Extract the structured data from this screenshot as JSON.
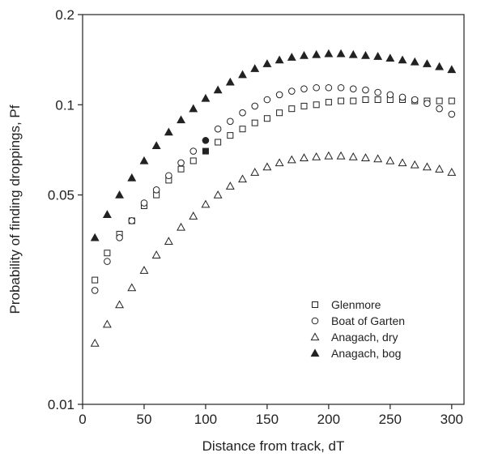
{
  "chart_data": {
    "type": "scatter",
    "title": "",
    "xlabel": "Distance from track, dT",
    "ylabel": "Probability of finding droppings, Pf",
    "xlim": [
      0,
      310
    ],
    "ylim": [
      0.01,
      0.2
    ],
    "yscale": "log",
    "xticks": [
      0,
      50,
      100,
      150,
      200,
      250,
      300
    ],
    "xtick_labels": [
      "0",
      "50",
      "100",
      "150",
      "200",
      "250",
      "300"
    ],
    "yticks": [
      0.01,
      0.05,
      0.1,
      0.2
    ],
    "ytick_labels": [
      "0.01",
      "0.05",
      "0.1",
      "0.2"
    ],
    "grid": false,
    "legend_position": "bottom-right",
    "series": [
      {
        "name": "Glenmore",
        "marker": "square-open",
        "x": [
          10,
          20,
          30,
          40,
          50,
          60,
          70,
          80,
          90,
          100,
          110,
          120,
          130,
          140,
          150,
          160,
          170,
          180,
          190,
          200,
          210,
          220,
          230,
          240,
          250,
          260,
          270,
          280,
          290,
          300
        ],
        "y": [
          0.026,
          0.032,
          0.037,
          0.041,
          0.046,
          0.05,
          0.056,
          0.061,
          0.065,
          0.07,
          0.075,
          0.079,
          0.083,
          0.087,
          0.09,
          0.094,
          0.097,
          0.099,
          0.1,
          0.102,
          0.103,
          0.103,
          0.104,
          0.104,
          0.104,
          0.104,
          0.103,
          0.103,
          0.103,
          0.103
        ],
        "highlight": {
          "x": 100,
          "y": 0.07,
          "marker": "square-filled"
        }
      },
      {
        "name": "Boat of Garten",
        "marker": "circle-open",
        "x": [
          10,
          20,
          30,
          40,
          50,
          60,
          70,
          80,
          90,
          100,
          110,
          120,
          130,
          140,
          150,
          160,
          170,
          180,
          190,
          200,
          210,
          220,
          230,
          240,
          250,
          260,
          270,
          280,
          290,
          300
        ],
        "y": [
          0.024,
          0.03,
          0.036,
          0.041,
          0.047,
          0.052,
          0.058,
          0.064,
          0.07,
          0.076,
          0.083,
          0.088,
          0.094,
          0.099,
          0.104,
          0.108,
          0.111,
          0.113,
          0.114,
          0.114,
          0.114,
          0.113,
          0.112,
          0.11,
          0.108,
          0.106,
          0.104,
          0.101,
          0.097,
          0.093
        ],
        "highlight": {
          "x": 100,
          "y": 0.076,
          "marker": "circle-filled"
        }
      },
      {
        "name": "Anagach, dry",
        "marker": "triangle-open",
        "x": [
          10,
          20,
          30,
          40,
          50,
          60,
          70,
          80,
          90,
          100,
          110,
          120,
          130,
          140,
          150,
          160,
          170,
          180,
          190,
          200,
          210,
          220,
          230,
          240,
          250,
          260,
          270,
          280,
          290,
          300
        ],
        "y": [
          0.016,
          0.0185,
          0.0215,
          0.0245,
          0.028,
          0.0315,
          0.035,
          0.039,
          0.0425,
          0.0465,
          0.05,
          0.0535,
          0.0565,
          0.0595,
          0.062,
          0.064,
          0.0655,
          0.0665,
          0.067,
          0.0675,
          0.0675,
          0.067,
          0.0665,
          0.066,
          0.065,
          0.064,
          0.063,
          0.062,
          0.061,
          0.0595
        ]
      },
      {
        "name": "Anagach, bog",
        "marker": "triangle-filled",
        "x": [
          10,
          20,
          30,
          40,
          50,
          60,
          70,
          80,
          90,
          100,
          110,
          120,
          130,
          140,
          150,
          160,
          170,
          180,
          190,
          200,
          210,
          220,
          230,
          240,
          250,
          260,
          270,
          280,
          290,
          300
        ],
        "y": [
          0.036,
          0.043,
          0.05,
          0.057,
          0.065,
          0.073,
          0.081,
          0.089,
          0.097,
          0.105,
          0.112,
          0.119,
          0.126,
          0.132,
          0.137,
          0.141,
          0.144,
          0.146,
          0.147,
          0.148,
          0.148,
          0.147,
          0.146,
          0.145,
          0.143,
          0.141,
          0.139,
          0.137,
          0.134,
          0.131
        ]
      }
    ]
  }
}
